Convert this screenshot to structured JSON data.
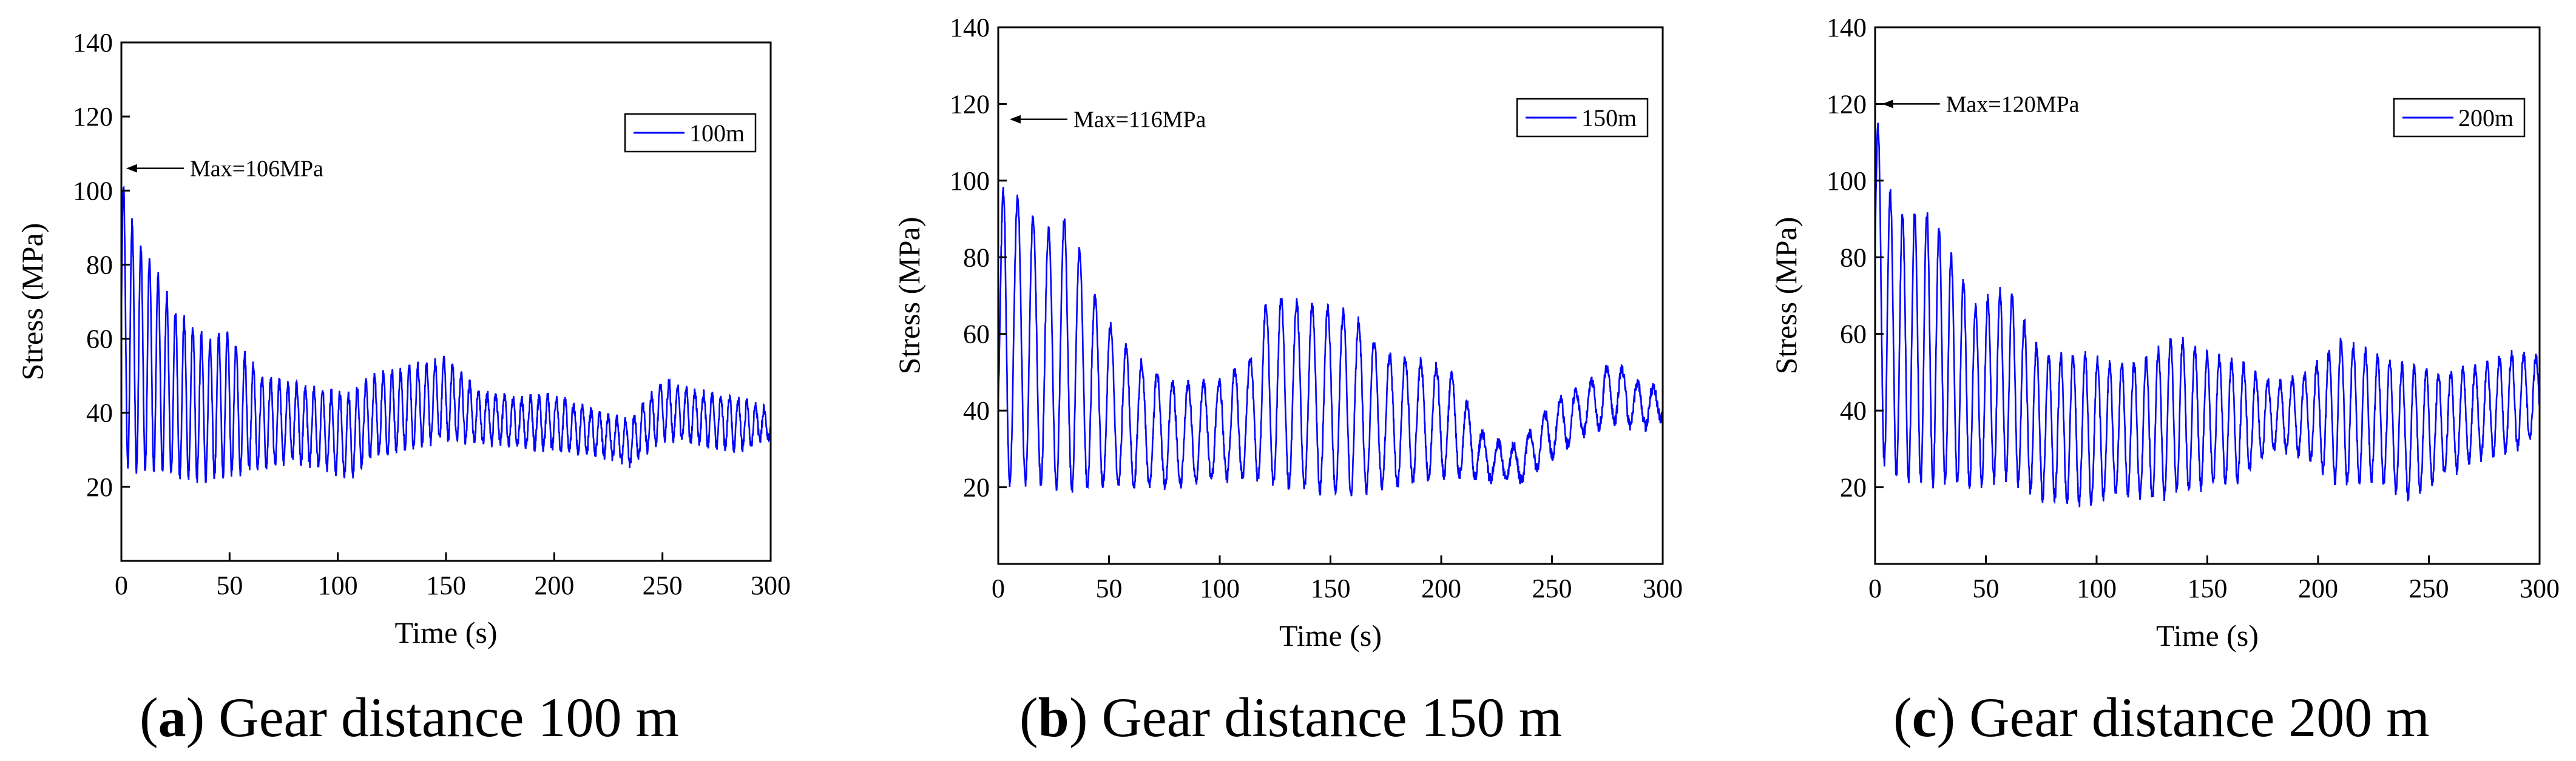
{
  "figure": {
    "panels": [
      {
        "caption": {
          "letter": "a",
          "text": "Gear distance 100 m"
        },
        "chart_data": {
          "type": "line",
          "xlabel": "Time (s)",
          "ylabel": "Stress (MPa)",
          "xlim": [
            0,
            300
          ],
          "ylim": [
            0,
            140
          ],
          "xticks": [
            0,
            50,
            100,
            150,
            200,
            250,
            300
          ],
          "yticks": [
            20,
            40,
            60,
            80,
            100,
            120,
            140
          ],
          "grid": false,
          "legend": {
            "position": "top-right",
            "entries": [
              "100m"
            ]
          },
          "annotation": {
            "text": "Max=106MPa",
            "x": 0,
            "y": 106
          },
          "series": [
            {
              "name": "100m",
              "color": "#0000ff",
              "oscillation_period_s": 4,
              "envelope": [
                [
                  0,
                  28,
                  106
                ],
                [
                  3,
                  24,
                  96
                ],
                [
                  8,
                  24,
                  87
                ],
                [
                  15,
                  24,
                  80
                ],
                [
                  25,
                  22,
                  68
                ],
                [
                  40,
                  22,
                  60
                ],
                [
                  50,
                  23,
                  62
                ],
                [
                  65,
                  25,
                  50
                ],
                [
                  80,
                  27,
                  48
                ],
                [
                  95,
                  25,
                  46
                ],
                [
                  105,
                  22,
                  45
                ],
                [
                  115,
                  28,
                  50
                ],
                [
                  130,
                  30,
                  52
                ],
                [
                  150,
                  33,
                  55
                ],
                [
                  165,
                  32,
                  46
                ],
                [
                  185,
                  31,
                  44
                ],
                [
                  200,
                  30,
                  45
                ],
                [
                  220,
                  29,
                  40
                ],
                [
                  235,
                  26,
                  38
                ],
                [
                  250,
                  33,
                  49
                ],
                [
                  265,
                  32,
                  46
                ],
                [
                  285,
                  30,
                  44
                ],
                [
                  300,
                  33,
                  41
                ]
              ]
            }
          ]
        }
      },
      {
        "caption": {
          "letter": "b",
          "text": "Gear distance 150 m"
        },
        "chart_data": {
          "type": "line",
          "xlabel": "Time (s)",
          "ylabel": "Stress (MPa)",
          "xlim": [
            0,
            300
          ],
          "ylim": [
            0,
            140
          ],
          "xticks": [
            0,
            50,
            100,
            150,
            200,
            250,
            300
          ],
          "yticks": [
            20,
            40,
            60,
            80,
            100,
            120,
            140
          ],
          "grid": false,
          "legend": {
            "position": "top-right",
            "entries": [
              "150m"
            ]
          },
          "annotation": {
            "text": "Max=116MPa",
            "x": 3,
            "y": 116
          },
          "series": [
            {
              "name": "150m",
              "color": "#0000ff",
              "oscillation_period_s": 7,
              "envelope": [
                [
                  0,
                  22,
                  60
                ],
                [
                  3,
                  20,
                  116
                ],
                [
                  8,
                  20,
                  97
                ],
                [
                  20,
                  20,
                  88
                ],
                [
                  32,
                  18,
                  91
                ],
                [
                  45,
                  20,
                  68
                ],
                [
                  60,
                  20,
                  55
                ],
                [
                  80,
                  20,
                  47
                ],
                [
                  100,
                  22,
                  48
                ],
                [
                  115,
                  22,
                  55
                ],
                [
                  122,
                  20,
                  71
                ],
                [
                  140,
                  19,
                  68
                ],
                [
                  160,
                  18,
                  66
                ],
                [
                  175,
                  20,
                  55
                ],
                [
                  195,
                  22,
                  53
                ],
                [
                  205,
                  23,
                  50
                ],
                [
                  220,
                  22,
                  33
                ],
                [
                  235,
                  21,
                  31
                ],
                [
                  250,
                  28,
                  42
                ],
                [
                  265,
                  34,
                  47
                ],
                [
                  278,
                  37,
                  53
                ],
                [
                  290,
                  35,
                  47
                ],
                [
                  300,
                  38,
                  46
                ]
              ]
            }
          ]
        }
      },
      {
        "caption": {
          "letter": "c",
          "text": "Gear distance 200 m"
        },
        "chart_data": {
          "type": "line",
          "xlabel": "Time (s)",
          "ylabel": "Stress (MPa)",
          "xlim": [
            0,
            300
          ],
          "ylim": [
            0,
            140
          ],
          "xticks": [
            0,
            50,
            100,
            150,
            200,
            250,
            300
          ],
          "yticks": [
            20,
            40,
            60,
            80,
            100,
            120,
            140
          ],
          "grid": false,
          "legend": {
            "position": "top-right",
            "entries": [
              "200m"
            ]
          },
          "annotation": {
            "text": "Max=120MPa",
            "x": 1,
            "y": 120
          },
          "series": [
            {
              "name": "200m",
              "color": "#0000ff",
              "oscillation_period_s": 5.5,
              "envelope": [
                [
                  0,
                  45,
                  120
                ],
                [
                  4,
                  25,
                  104
                ],
                [
                  10,
                  22,
                  92
                ],
                [
                  25,
                  20,
                  93
                ],
                [
                  45,
                  20,
                  68
                ],
                [
                  60,
                  22,
                  73
                ],
                [
                  75,
                  17,
                  55
                ],
                [
                  95,
                  15,
                  55
                ],
                [
                  110,
                  18,
                  52
                ],
                [
                  125,
                  16,
                  55
                ],
                [
                  135,
                  18,
                  60
                ],
                [
                  150,
                  20,
                  55
                ],
                [
                  165,
                  22,
                  53
                ],
                [
                  180,
                  30,
                  47
                ],
                [
                  195,
                  28,
                  50
                ],
                [
                  210,
                  20,
                  59
                ],
                [
                  225,
                  22,
                  55
                ],
                [
                  240,
                  17,
                  52
                ],
                [
                  255,
                  22,
                  50
                ],
                [
                  275,
                  28,
                  52
                ],
                [
                  290,
                  30,
                  56
                ],
                [
                  300,
                  33,
                  54
                ]
              ]
            }
          ]
        }
      }
    ]
  }
}
